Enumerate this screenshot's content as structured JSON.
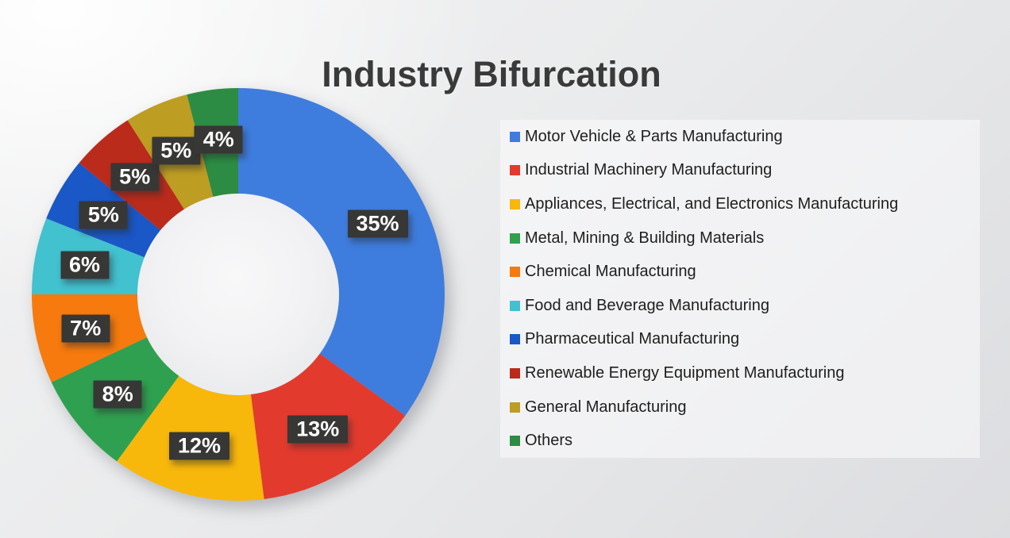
{
  "title": "Industry Bifurcation",
  "chart_data": {
    "type": "pie",
    "subtype": "donut",
    "title": "Industry Bifurcation",
    "start_angle_deg": 0,
    "direction": "clockwise",
    "legend_position": "right",
    "units": "%",
    "categories": [
      "Motor Vehicle & Parts Manufacturing",
      "Industrial Machinery Manufacturing",
      "Appliances, Electrical, and Electronics Manufacturing",
      "Metal, Mining & Building Materials",
      "Chemical Manufacturing",
      "Food and Beverage Manufacturing",
      "Pharmaceutical Manufacturing",
      "Renewable Energy Equipment Manufacturing",
      "General Manufacturing",
      "Others"
    ],
    "values": [
      35,
      13,
      12,
      8,
      7,
      6,
      5,
      5,
      5,
      4
    ],
    "slice_labels": [
      "35%",
      "13%",
      "12%",
      "8%",
      "7%",
      "6%",
      "5%",
      "5%",
      "5%",
      "4%"
    ],
    "colors": [
      "#3E7DDE",
      "#E23B2D",
      "#F8B70B",
      "#2FA050",
      "#F67A0D",
      "#42C1CF",
      "#1A57C7",
      "#BB2B1B",
      "#BD9D22",
      "#2C8C43"
    ],
    "label_box_color": "#373736",
    "label_text_color": "#FFFFFF",
    "title_color": "#3A3A3A"
  }
}
